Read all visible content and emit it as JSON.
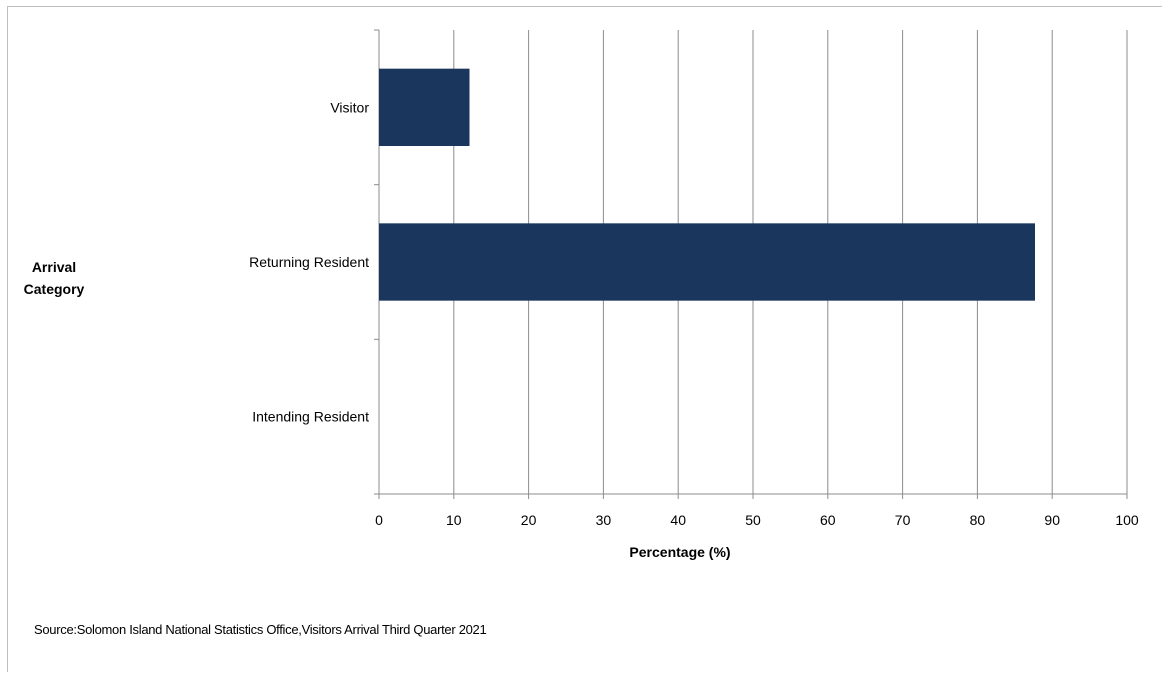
{
  "chart_data": {
    "type": "bar",
    "orientation": "horizontal",
    "categories": [
      "Visitor",
      "Returning Resident",
      "Intending Resident"
    ],
    "values": [
      12.1,
      87.7,
      0
    ],
    "xlabel": "Percentage (%)",
    "ylabel": "Arrival Category",
    "xlim": [
      0,
      100
    ],
    "xticks": [
      "0",
      "10",
      "20",
      "30",
      "40",
      "50",
      "60",
      "70",
      "80",
      "90",
      "100"
    ],
    "grid": "vertical",
    "bar_color": "#1b365d"
  },
  "source": "Source:Solomon Island National Statistics Office,Visitors Arrival Third Quarter 2021"
}
